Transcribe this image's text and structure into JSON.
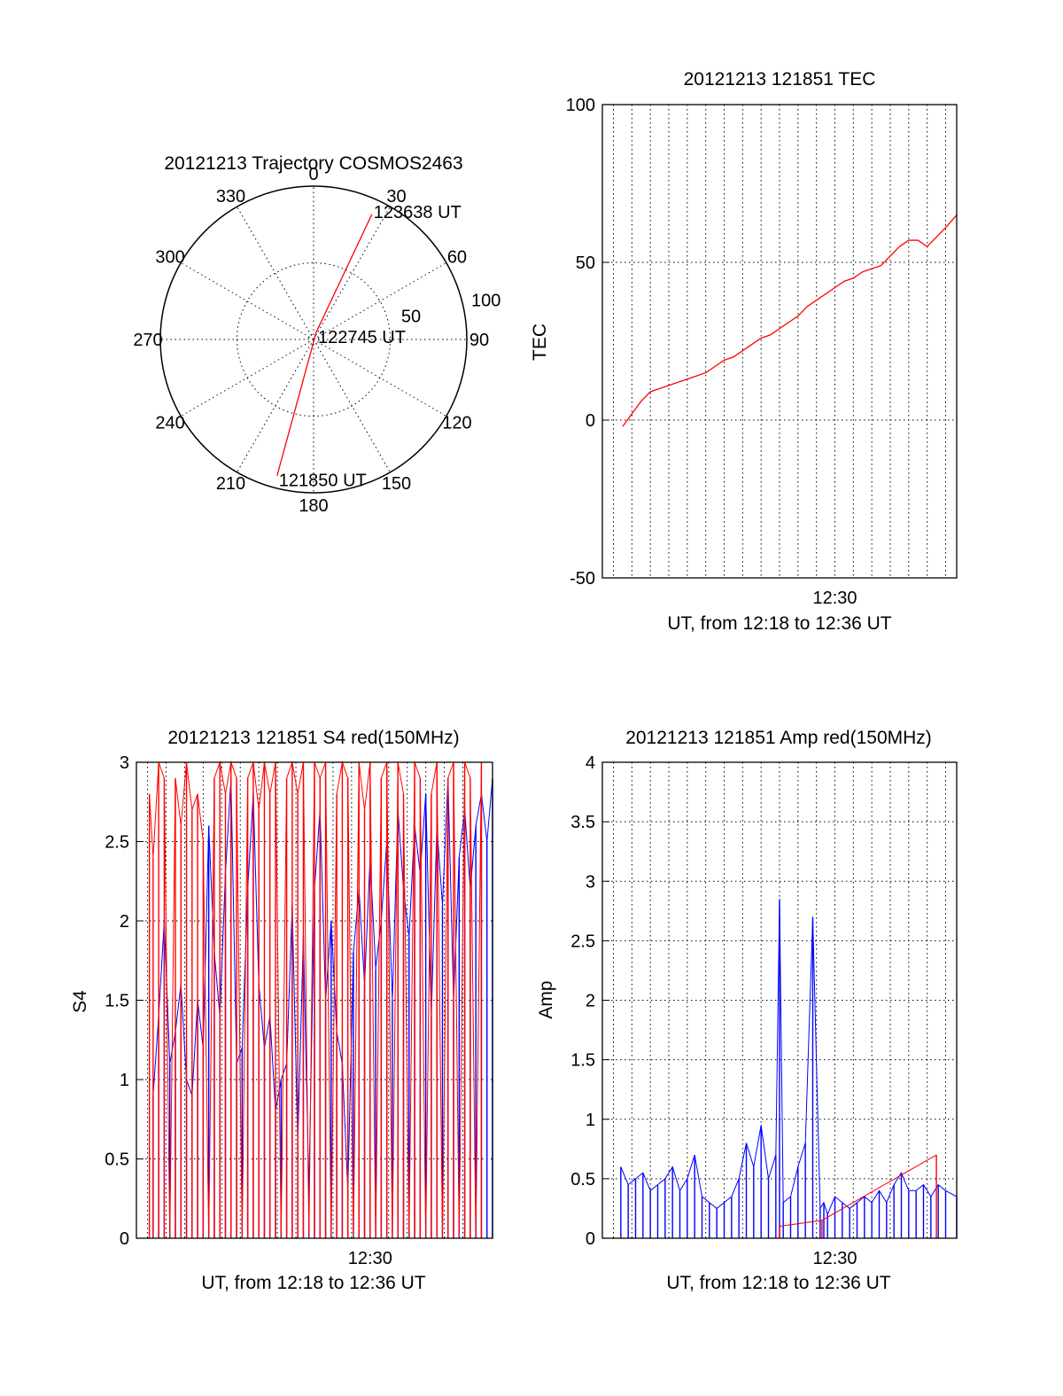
{
  "chart_data": [
    {
      "type": "polar",
      "title": "20121213 Trajectory COSMOS2463",
      "azimuth_labels": [
        "0",
        "30",
        "60",
        "90",
        "120",
        "150",
        "180",
        "210",
        "240",
        "270",
        "300",
        "330"
      ],
      "radial_labels": [
        "50",
        "100"
      ],
      "rlim": [
        0,
        100
      ],
      "grid": true,
      "track": {
        "color": "#ff0000",
        "points": [
          {
            "az": 195,
            "r": 92
          },
          {
            "az": 20,
            "r": 5
          },
          {
            "az": 25,
            "r": 90
          }
        ],
        "labels": [
          {
            "text": "121850 UT",
            "az": 195,
            "r": 92
          },
          {
            "text": "122745 UT",
            "az": 20,
            "r": 5
          },
          {
            "text": "123638 UT",
            "az": 25,
            "r": 90
          }
        ]
      }
    },
    {
      "type": "line",
      "title": "20121213 121851 TEC",
      "ylabel": "TEC",
      "xlabel": "UT, from 12:18 to 12:36 UT",
      "ylim": [
        -50,
        100
      ],
      "yticks": [
        "-50",
        "0",
        "50",
        "100"
      ],
      "xticks": [
        {
          "label": "12:30",
          "x": 12.0
        }
      ],
      "xlim": [
        -0.6,
        18.6
      ],
      "grid": true,
      "series": [
        {
          "color": "#ff0000",
          "x": [
            0.5,
            1.0,
            1.5,
            2.0,
            2.5,
            3.0,
            3.5,
            4.0,
            4.5,
            5.0,
            5.5,
            6.0,
            6.5,
            7.0,
            7.5,
            8.0,
            8.5,
            9.0,
            9.5,
            10.0,
            10.5,
            11.0,
            11.5,
            12.0,
            12.5,
            13.0,
            13.5,
            14.0,
            14.5,
            15.0,
            15.5,
            16.0,
            16.5,
            17.0,
            17.5,
            18.0,
            18.6
          ],
          "values": [
            -2,
            2,
            6,
            9,
            10,
            11,
            12,
            13,
            14,
            15,
            17,
            19,
            20,
            22,
            24,
            26,
            27,
            29,
            31,
            33,
            36,
            38,
            40,
            42,
            44,
            45,
            47,
            48,
            49,
            52,
            55,
            57,
            57,
            55,
            58,
            61,
            65
          ]
        }
      ]
    },
    {
      "type": "line",
      "title": "20121213 121851 S4 red(150MHz)",
      "ylabel": "S4",
      "xlabel": "UT, from 12:18 to 12:36 UT",
      "ylim": [
        0,
        3
      ],
      "yticks": [
        "0",
        "0.5",
        "1",
        "1.5",
        "2",
        "2.5",
        "3"
      ],
      "xticks": [
        {
          "label": "12:30",
          "x": 12.0
        }
      ],
      "xlim": [
        -0.6,
        18.6
      ],
      "grid": true,
      "series": [
        {
          "color": "#0000ff",
          "x": [
            0.3,
            0.6,
            0.9,
            1.2,
            1.5,
            1.8,
            2.1,
            2.4,
            2.7,
            3.0,
            3.3,
            3.6,
            3.9,
            4.2,
            4.5,
            4.8,
            5.1,
            5.4,
            5.7,
            6.0,
            6.3,
            6.6,
            6.9,
            7.2,
            7.5,
            7.8,
            8.1,
            8.4,
            8.7,
            9.0,
            9.3,
            9.6,
            9.9,
            10.2,
            10.5,
            10.8,
            11.1,
            11.4,
            11.7,
            12.0,
            12.3,
            12.6,
            12.9,
            13.2,
            13.5,
            13.8,
            14.1,
            14.4,
            14.7,
            15.0,
            15.3,
            15.6,
            15.9,
            16.2,
            16.5,
            16.8,
            17.1,
            17.4,
            17.7,
            18.0,
            18.3,
            18.6
          ],
          "values": [
            0.9,
            1.4,
            2.0,
            1.1,
            1.3,
            1.6,
            1.0,
            0.9,
            1.5,
            1.2,
            2.6,
            1.8,
            1.4,
            2.3,
            2.9,
            1.1,
            1.2,
            2.2,
            2.8,
            1.6,
            1.2,
            1.4,
            0.8,
            1.0,
            1.1,
            2.1,
            0.6,
            1.9,
            0.3,
            2.2,
            2.7,
            1.5,
            2.0,
            1.3,
            1.1,
            0.3,
            1.8,
            2.2,
            1.6,
            2.4,
            1.7,
            2.0,
            2.5,
            1.5,
            2.7,
            2.2,
            1.9,
            2.6,
            2.3,
            2.8,
            1.4,
            2.6,
            2.1,
            2.9,
            1.5,
            2.4,
            2.7,
            2.2,
            2.6,
            2.8,
            2.5,
            2.9
          ]
        },
        {
          "color": "#ff0000",
          "x": [
            0.1,
            0.3,
            0.6,
            0.9,
            1.2,
            1.5,
            1.8,
            2.1,
            2.4,
            2.7,
            3.0,
            3.3,
            3.6,
            3.9,
            4.2,
            4.5,
            4.8,
            5.1,
            5.4,
            5.7,
            6.0,
            6.3,
            6.6,
            6.9,
            7.2,
            7.5,
            7.8,
            8.1,
            8.4,
            8.7,
            9.0,
            9.3,
            9.6,
            9.9,
            10.2,
            10.5,
            10.8,
            11.1,
            11.4,
            11.7,
            12.0,
            12.3,
            12.6,
            12.9,
            13.2,
            13.5,
            13.8,
            14.1,
            14.4,
            14.7,
            15.0,
            15.3,
            15.6,
            15.9,
            16.2,
            16.5,
            16.8,
            17.1,
            17.4,
            17.7,
            18.0
          ],
          "values": [
            2.8,
            2.4,
            3.0,
            2.9,
            0.0,
            2.9,
            2.6,
            3.0,
            2.7,
            2.8,
            2.5,
            0.0,
            2.9,
            3.0,
            2.8,
            3.0,
            2.9,
            0.0,
            2.9,
            3.0,
            2.7,
            3.0,
            2.8,
            3.0,
            0.0,
            2.9,
            3.0,
            2.8,
            3.0,
            0.0,
            3.0,
            2.9,
            3.0,
            0.0,
            2.8,
            3.0,
            2.9,
            0.0,
            3.0,
            2.7,
            3.0,
            0.0,
            2.9,
            3.0,
            0.0,
            3.0,
            2.8,
            0.0,
            3.0,
            2.9,
            0.0,
            2.8,
            3.0,
            0.0,
            2.9,
            3.0,
            0.0,
            3.0,
            2.9,
            0.0,
            3.0
          ]
        }
      ]
    },
    {
      "type": "line",
      "title": "20121213 121851 Amp red(150MHz)",
      "ylabel": "Amp",
      "xlabel": "UT, from 12:18 to 12:36 UT",
      "ylim": [
        0,
        4
      ],
      "yticks": [
        "0",
        "0.5",
        "1",
        "1.5",
        "2",
        "2.5",
        "3",
        "3.5",
        "4"
      ],
      "xticks": [
        {
          "label": "12:30",
          "x": 12.0
        }
      ],
      "xlim": [
        -0.6,
        18.6
      ],
      "grid": true,
      "series": [
        {
          "color": "#0000ff",
          "x": [
            0.4,
            0.8,
            1.2,
            1.6,
            2.0,
            2.4,
            2.8,
            3.2,
            3.6,
            4.0,
            4.4,
            4.8,
            5.2,
            5.6,
            6.0,
            6.4,
            6.8,
            7.2,
            7.6,
            8.0,
            8.4,
            8.8,
            9.0,
            9.2,
            9.6,
            10.0,
            10.4,
            10.8,
            11.2,
            11.4,
            11.6,
            12.0,
            12.4,
            12.8,
            13.2,
            13.6,
            14.0,
            14.4,
            14.8,
            15.2,
            15.6,
            16.0,
            16.4,
            16.8,
            17.2,
            17.6,
            18.0,
            18.6
          ],
          "values": [
            0.6,
            0.45,
            0.5,
            0.55,
            0.4,
            0.45,
            0.5,
            0.6,
            0.4,
            0.5,
            0.7,
            0.35,
            0.3,
            0.25,
            0.3,
            0.35,
            0.5,
            0.8,
            0.6,
            0.95,
            0.5,
            0.7,
            2.85,
            0.3,
            0.35,
            0.6,
            0.8,
            2.7,
            0.25,
            0.3,
            0.2,
            0.35,
            0.3,
            0.25,
            0.3,
            0.35,
            0.3,
            0.4,
            0.3,
            0.45,
            0.55,
            0.4,
            0.4,
            0.45,
            0.35,
            0.45,
            0.4,
            0.35
          ]
        },
        {
          "color": "#ff0000",
          "x": [
            9.0,
            11.3,
            17.5
          ],
          "values": [
            0.1,
            0.15,
            0.7
          ]
        }
      ]
    }
  ]
}
